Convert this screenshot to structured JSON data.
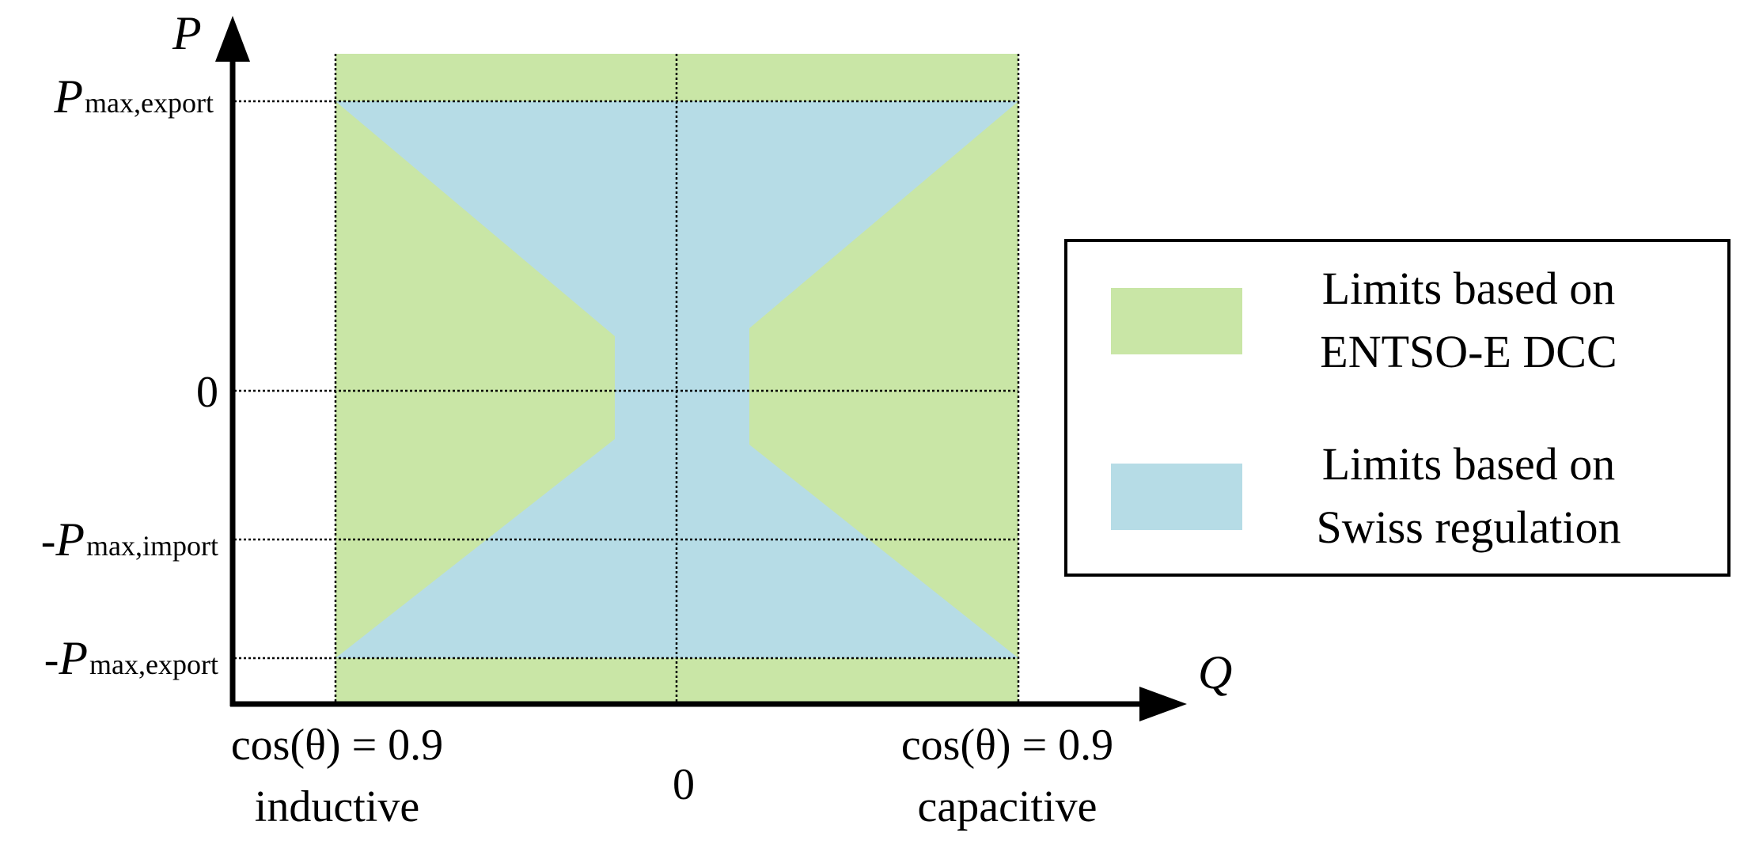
{
  "colors": {
    "entso_e_green": "#c9e6a6",
    "swiss_blue": "#b6dce6",
    "axis": "#000000"
  },
  "axes": {
    "y_name": "P",
    "x_name": "Q"
  },
  "y_ticks": {
    "p_max_export": {
      "prefix": "",
      "symbol": "P",
      "subscript": "max,export"
    },
    "zero": "0",
    "neg_p_max_import": {
      "prefix": "-",
      "symbol": "P",
      "subscript": "max,import"
    },
    "neg_p_max_export": {
      "prefix": "-",
      "symbol": "P",
      "subscript": "max,export"
    }
  },
  "x_ticks": {
    "left": {
      "line1": "cos(θ) = 0.9",
      "line2": "inductive"
    },
    "center": "0",
    "right": {
      "line1": "cos(θ) = 0.9",
      "line2": "capacitive"
    }
  },
  "legend": {
    "items": [
      {
        "line1": "Limits based on",
        "line2": "ENTSO-E DCC",
        "color": "#c9e6a6"
      },
      {
        "line1": "Limits based on",
        "line2": "Swiss regulation",
        "color": "#b6dce6"
      }
    ]
  }
}
